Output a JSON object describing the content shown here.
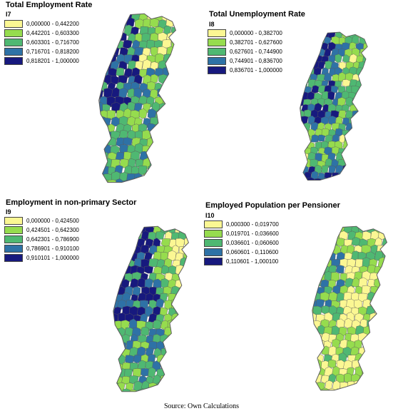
{
  "palette": {
    "class1": "#fbf793",
    "class2": "#96dc4e",
    "class3": "#4fb872",
    "class4": "#2e72a6",
    "class5": "#17197e",
    "outline": "#5a5a5a"
  },
  "panels": [
    {
      "title": "Total Employment Rate",
      "code": "I7",
      "legend": [
        "0,000000 - 0,442200",
        "0,442201 - 0,603300",
        "0,603301 - 0,716700",
        "0,716701 - 0,818200",
        "0,818201 - 1,000000"
      ]
    },
    {
      "title": "Total Unemployment Rate",
      "code": "I8",
      "legend": [
        "0,000000 - 0,382700",
        "0,382701 - 0,627600",
        "0,627601 - 0,744900",
        "0,744901 - 0,836700",
        "0,836701 - 1,000000"
      ]
    },
    {
      "title": "Employment in non-primary Sector",
      "code": "I9",
      "legend": [
        "0,000000 - 0,424500",
        "0,424501 - 0,642300",
        "0,642301 - 0,786900",
        "0,786901 - 0,910100",
        "0,910101 - 1,000000"
      ]
    },
    {
      "title": "Employed Population per Pensioner",
      "code": "I10",
      "legend": [
        "0,000300 - 0,019700",
        "0,019701 - 0,036600",
        "0,036601 - 0,060600",
        "0,060601 - 0,110600",
        "0,110601 - 1,000100"
      ]
    }
  ],
  "source": "Source: Own Calculations"
}
